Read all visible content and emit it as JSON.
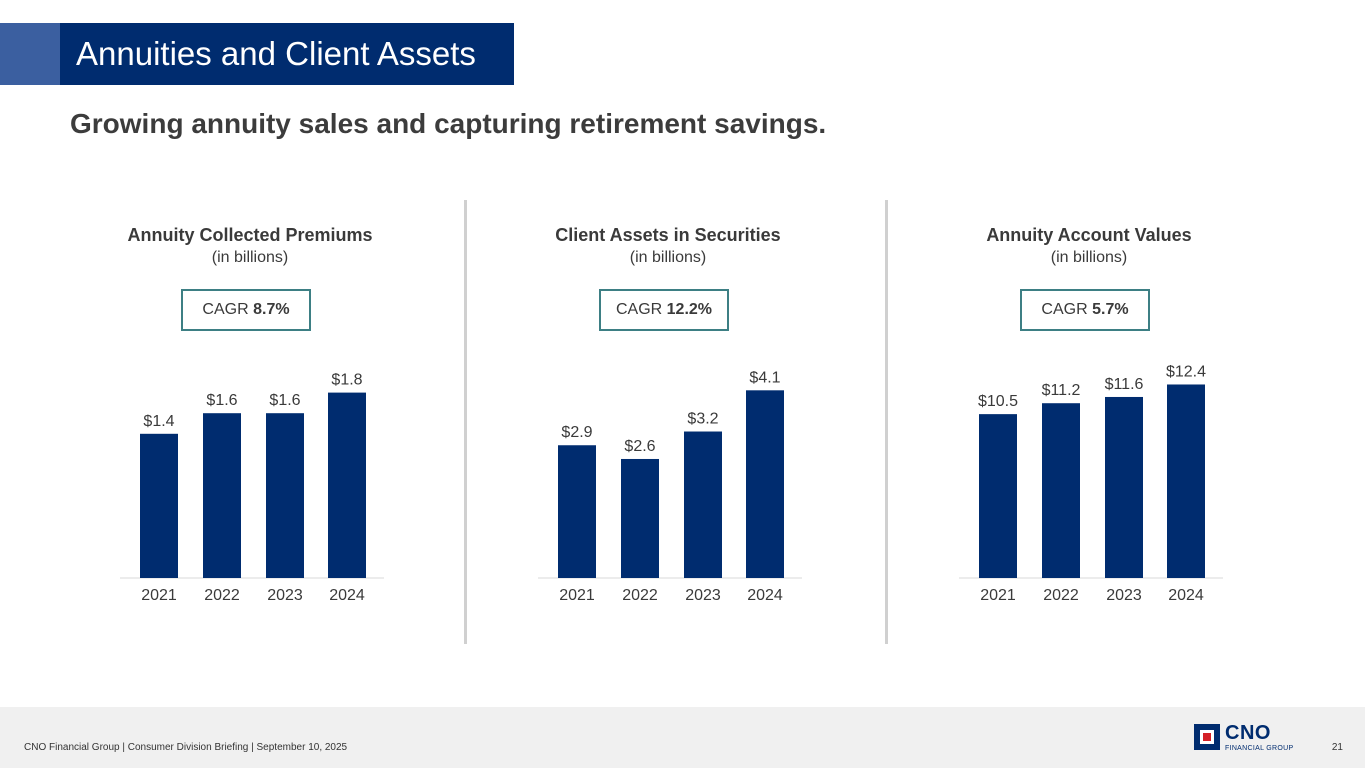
{
  "slide": {
    "title": "Annuities and Client Assets",
    "subtitle": "Growing annuity sales and capturing retirement savings."
  },
  "colors": {
    "bar": "#002c6f",
    "title_bg": "#002c6f",
    "accent": "#3b5fa0",
    "cagr_border": "#3d7f84"
  },
  "chart_data": [
    {
      "type": "bar",
      "title": "Annuity Collected Premiums",
      "subtitle": "(in billions)",
      "cagr_label": "CAGR",
      "cagr_value": "8.7%",
      "categories": [
        "2021",
        "2022",
        "2023",
        "2024"
      ],
      "values": [
        1.4,
        1.6,
        1.6,
        1.8
      ],
      "labels": [
        "$1.4",
        "$1.6",
        "$1.6",
        "$1.8"
      ],
      "ylim": [
        0,
        2.0
      ]
    },
    {
      "type": "bar",
      "title": "Client Assets in Securities",
      "subtitle": "(in billions)",
      "cagr_label": "CAGR",
      "cagr_value": "12.2%",
      "categories": [
        "2021",
        "2022",
        "2023",
        "2024"
      ],
      "values": [
        2.9,
        2.6,
        3.2,
        4.1
      ],
      "labels": [
        "$2.9",
        "$2.6",
        "$3.2",
        "$4.1"
      ],
      "ylim": [
        0,
        4.5
      ]
    },
    {
      "type": "bar",
      "title": "Annuity Account Values",
      "subtitle": "(in billions)",
      "cagr_label": "CAGR",
      "cagr_value": "5.7%",
      "categories": [
        "2021",
        "2022",
        "2023",
        "2024"
      ],
      "values": [
        10.5,
        11.2,
        11.6,
        12.4
      ],
      "labels": [
        "$10.5",
        "$11.2",
        "$11.6",
        "$12.4"
      ],
      "ylim": [
        0,
        13.2
      ]
    }
  ],
  "footer": {
    "text": "CNO Financial Group  |  Consumer Division Briefing  |  September 10, 2025",
    "page": "21",
    "logo_name": "CNO",
    "logo_sub": "FINANCIAL GROUP"
  }
}
